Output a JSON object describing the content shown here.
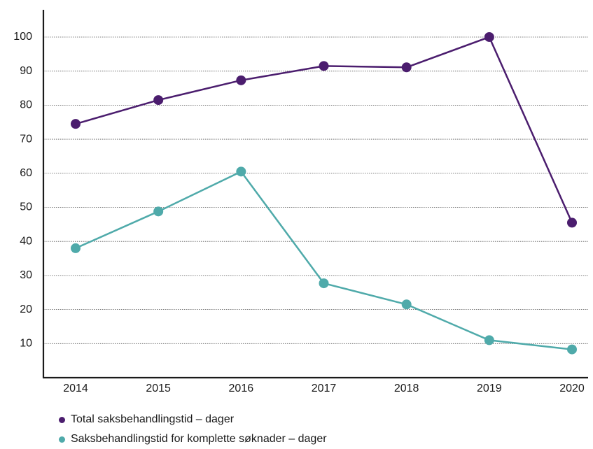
{
  "chart_data": {
    "type": "line",
    "x": [
      "2014",
      "2015",
      "2016",
      "2017",
      "2018",
      "2019",
      "2020"
    ],
    "yticks": [
      10,
      20,
      30,
      40,
      50,
      60,
      70,
      80,
      90,
      100
    ],
    "ylim": [
      0,
      108
    ],
    "grid": true,
    "legend_position": "bottom-left",
    "series": [
      {
        "name": "Total saksbehandlingstid – dager",
        "color": "#4b1d6e",
        "values": [
          74.5,
          81.5,
          87.3,
          91.5,
          91.1,
          100,
          45.5
        ]
      },
      {
        "name": "Saksbehandlingstid for komplette søknader – dager",
        "color": "#4faaaa",
        "values": [
          38,
          48.8,
          60.5,
          27.7,
          21.5,
          11,
          8.3
        ]
      }
    ]
  }
}
